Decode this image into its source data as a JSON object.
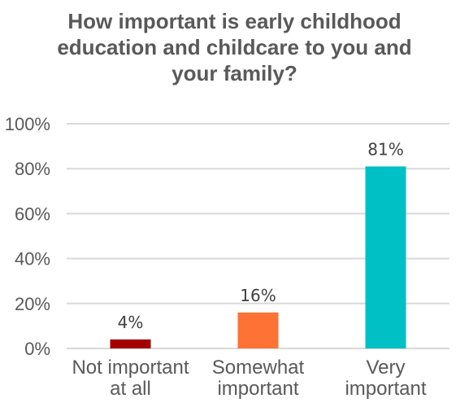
{
  "chart_data": {
    "type": "bar",
    "title_lines": [
      "How important is early childhood",
      "education and childcare to you and",
      "your family?"
    ],
    "categories": [
      [
        "Not important",
        "at all"
      ],
      [
        "Somewhat",
        "important"
      ],
      [
        "Very",
        "important"
      ]
    ],
    "values": [
      4,
      16,
      81
    ],
    "data_labels": [
      "4%",
      "16%",
      "81%"
    ],
    "colors": [
      "#a50000",
      "#ff7235",
      "#00c0c6"
    ],
    "ylim": [
      0,
      100
    ],
    "yticks": [
      0,
      20,
      40,
      60,
      80,
      100
    ],
    "ytick_labels": [
      "0%",
      "20%",
      "40%",
      "60%",
      "80%",
      "100%"
    ],
    "grid": true,
    "xlabel": "",
    "ylabel": ""
  }
}
